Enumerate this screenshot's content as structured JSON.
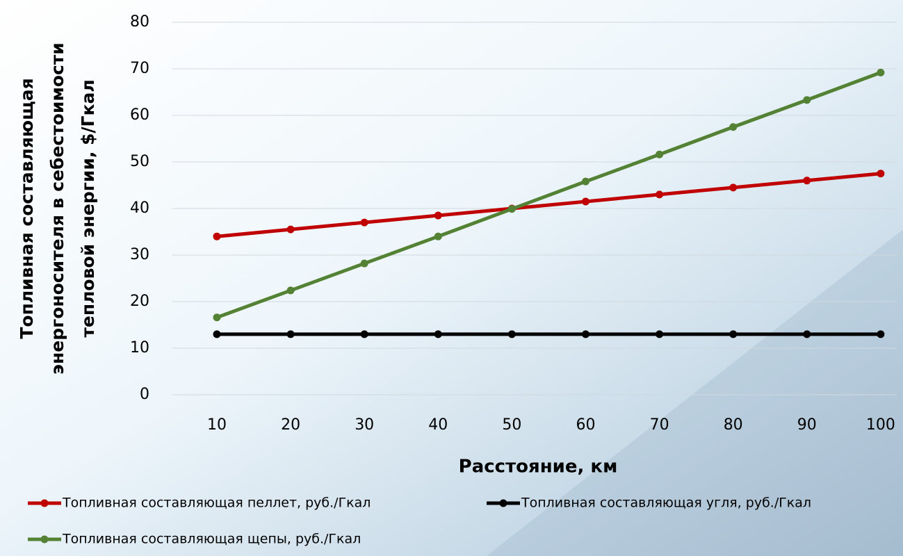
{
  "chart_data": {
    "type": "line",
    "y_label": [
      "Топливная составляющая",
      "энергоносителя в себестоимости",
      "тепловой энергии, $/Гкал"
    ],
    "x_label": "Расстояние, км",
    "categories": [
      "10",
      "20",
      "30",
      "40",
      "50",
      "60",
      "70",
      "80",
      "90",
      "100"
    ],
    "series": [
      {
        "name": "Топливная составляющая пеллет, руб./Гкал",
        "color": "#c00000",
        "values": [
          34,
          35.5,
          37,
          38.5,
          40,
          41.5,
          43,
          44.5,
          46,
          47.5
        ]
      },
      {
        "name": "Топливная составляющая угля, руб./Гкал",
        "color": "#000000",
        "values": [
          13,
          13,
          13,
          13,
          13,
          13,
          13,
          13,
          13,
          13
        ]
      },
      {
        "name": "Топливная составляющая щепы, руб./Гкал",
        "color": "#548235",
        "values": [
          16.6,
          22.4,
          28.2,
          34.0,
          39.9,
          45.8,
          51.6,
          57.5,
          63.3,
          69.2
        ]
      }
    ],
    "ylim": [
      0,
      80
    ],
    "yticks": [
      0,
      10,
      20,
      30,
      40,
      50,
      60,
      70,
      80
    ],
    "grid": true
  }
}
